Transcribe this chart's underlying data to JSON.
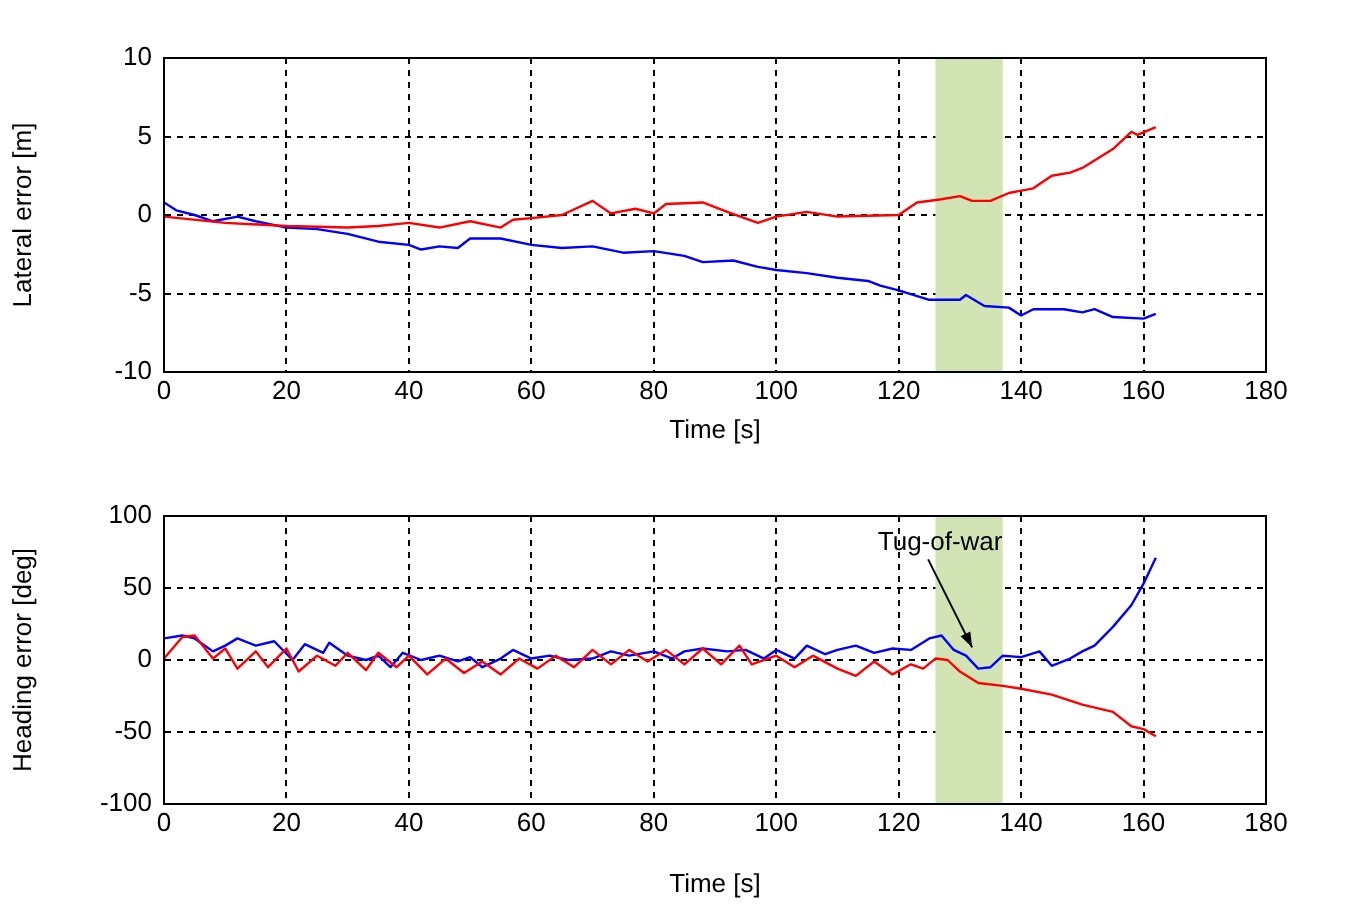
{
  "chart_data": [
    {
      "type": "line",
      "xlabel": "Time [s]",
      "ylabel": "Lateral error [m]",
      "xlim": [
        0,
        180
      ],
      "xticks": [
        0,
        20,
        40,
        60,
        80,
        100,
        120,
        140,
        160,
        180
      ],
      "ylim": [
        -10,
        10
      ],
      "yticks": [
        -10,
        -5,
        0,
        5,
        10
      ],
      "grid": true,
      "legend": false,
      "marker": "none",
      "line_style": "solid",
      "bands": [
        {
          "axis": "x",
          "from": 126,
          "to": 137,
          "color": "#d3e4b4"
        }
      ],
      "series": [
        {
          "color": "#ff0000",
          "x": [
            0,
            10,
            20,
            30,
            35,
            40,
            45,
            50,
            55,
            57,
            60,
            65,
            70,
            73,
            77,
            80,
            82,
            88,
            92,
            97,
            100,
            105,
            110,
            120,
            123,
            127,
            130,
            132,
            135,
            138,
            142,
            145,
            148,
            150,
            155,
            158,
            159,
            162
          ],
          "values": [
            -0.1,
            -0.5,
            -0.7,
            -0.8,
            -0.7,
            -0.5,
            -0.8,
            -0.4,
            -0.8,
            -0.3,
            -0.2,
            0,
            0.9,
            0.1,
            0.4,
            0.1,
            0.7,
            0.8,
            0.2,
            -0.5,
            -0.1,
            0.2,
            -0.1,
            0,
            0.8,
            1.0,
            1.2,
            0.9,
            0.9,
            1.4,
            1.7,
            2.5,
            2.7,
            3.0,
            4.2,
            5.3,
            5.1,
            5.6
          ]
        },
        {
          "color": "#0000ff",
          "x": [
            0,
            2,
            5,
            8,
            12,
            15,
            20,
            25,
            30,
            35,
            40,
            42,
            45,
            48,
            50,
            55,
            60,
            65,
            70,
            75,
            80,
            85,
            88,
            93,
            97,
            100,
            105,
            110,
            115,
            117,
            120,
            125,
            130,
            131,
            134,
            138,
            140,
            142,
            147,
            150,
            152,
            155,
            160,
            162
          ],
          "values": [
            0.8,
            0.3,
            0,
            -0.4,
            -0.1,
            -0.4,
            -0.8,
            -0.9,
            -1.2,
            -1.7,
            -1.9,
            -2.2,
            -2.0,
            -2.1,
            -1.5,
            -1.5,
            -1.9,
            -2.1,
            -2.0,
            -2.4,
            -2.3,
            -2.6,
            -3.0,
            -2.9,
            -3.3,
            -3.5,
            -3.7,
            -4.0,
            -4.2,
            -4.5,
            -4.8,
            -5.4,
            -5.4,
            -5.1,
            -5.8,
            -5.9,
            -6.4,
            -6.0,
            -6.0,
            -6.2,
            -6.0,
            -6.5,
            -6.6,
            -6.3
          ]
        }
      ]
    },
    {
      "type": "line",
      "xlabel": "Time [s]",
      "ylabel": "Heading error [deg]",
      "xlim": [
        0,
        180
      ],
      "xticks": [
        0,
        20,
        40,
        60,
        80,
        100,
        120,
        140,
        160,
        180
      ],
      "ylim": [
        -100,
        100
      ],
      "yticks": [
        -100,
        -50,
        0,
        50,
        100
      ],
      "grid": true,
      "legend": false,
      "marker": "none",
      "line_style": "solid",
      "bands": [
        {
          "axis": "x",
          "from": 126,
          "to": 137,
          "color": "#d3e4b4"
        }
      ],
      "annotations": [
        {
          "text": "Tug-of-war",
          "x": 132,
          "y": 6
        }
      ],
      "series": [
        {
          "color": "#ff0000",
          "x": [
            0,
            3,
            5,
            8,
            10,
            12,
            15,
            17,
            20,
            22,
            25,
            28,
            30,
            33,
            35,
            38,
            40,
            43,
            46,
            49,
            52,
            55,
            58,
            61,
            64,
            67,
            70,
            73,
            76,
            79,
            82,
            85,
            88,
            91,
            94,
            96,
            100,
            103,
            106,
            110,
            113,
            116,
            119,
            122,
            124,
            126,
            128,
            130,
            133,
            137,
            140,
            145,
            150,
            155,
            158,
            160,
            162
          ],
          "values": [
            1,
            16,
            17,
            1,
            8,
            -6,
            6,
            -5,
            8,
            -8,
            3,
            -4,
            5,
            -7,
            5,
            -5,
            3,
            -10,
            1,
            -9,
            -1,
            -10,
            1,
            -6,
            3,
            -5,
            7,
            -3,
            7,
            -1,
            7,
            -3,
            8,
            -3,
            10,
            -3,
            3,
            -5,
            3,
            -6,
            -11,
            -1,
            -10,
            -3,
            -6,
            1,
            0,
            -8,
            -16,
            -18,
            -20,
            -24,
            -31,
            -36,
            -46,
            -48,
            -53
          ]
        },
        {
          "color": "#0000ff",
          "x": [
            0,
            3,
            5,
            8,
            10,
            12,
            15,
            18,
            21,
            23,
            26,
            27,
            30,
            33,
            35,
            37,
            39,
            42,
            45,
            48,
            50,
            52,
            55,
            57,
            60,
            63,
            66,
            70,
            73,
            76,
            80,
            83,
            85,
            88,
            92,
            95,
            98,
            100,
            103,
            105,
            108,
            110,
            113,
            116,
            119,
            122,
            125,
            127,
            129,
            131,
            133,
            135,
            137,
            140,
            143,
            145,
            148,
            150,
            152,
            155,
            158,
            160,
            162
          ],
          "values": [
            15,
            17,
            15,
            6,
            10,
            15,
            10,
            13,
            0,
            11,
            5,
            12,
            3,
            0,
            3,
            -5,
            5,
            0,
            3,
            -1,
            2,
            -5,
            1,
            7,
            1,
            3,
            0,
            1,
            6,
            3,
            6,
            1,
            6,
            8,
            6,
            7,
            1,
            7,
            1,
            10,
            4,
            7,
            10,
            5,
            8,
            7,
            15,
            17,
            7,
            3,
            -6,
            -5,
            3,
            2,
            6,
            -4,
            1,
            6,
            10,
            23,
            38,
            53,
            71
          ]
        }
      ]
    }
  ]
}
